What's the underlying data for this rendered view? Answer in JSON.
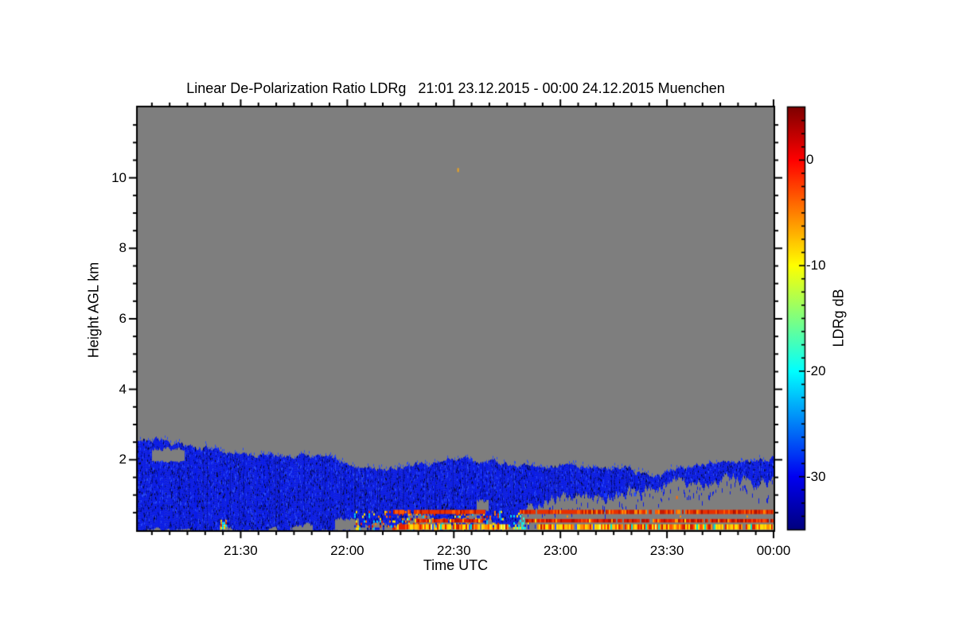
{
  "chart_data": {
    "type": "heatmap",
    "title": "Linear De-Polarization Ratio LDRg   21:01 23.12.2015 - 00:00 24.12.2015 Muenchen",
    "xlabel": "Time UTC",
    "ylabel": "Height AGL km",
    "colorbar_label": "LDRg dB",
    "x_start": "21:01",
    "x_end": "00:00",
    "x_ticks": [
      "21:30",
      "22:00",
      "22:30",
      "23:00",
      "23:30",
      "00:00"
    ],
    "x_minor_tick_minutes": 5,
    "y_range_km": [
      0,
      12
    ],
    "y_ticks": [
      2,
      4,
      6,
      8,
      10
    ],
    "y_minor_tick_km": 0.5,
    "color_scale": {
      "min_db": -35,
      "max_db": 5,
      "ticks_db": [
        0,
        -10,
        -20,
        -30
      ],
      "minor_tick_db": 1.25
    },
    "colormap_stops": [
      [
        0.0,
        "#00007f"
      ],
      [
        0.125,
        "#0000f1"
      ],
      [
        0.375,
        "#00ffff"
      ],
      [
        0.625,
        "#ffff00"
      ],
      [
        0.875,
        "#ff0000"
      ],
      [
        1.0,
        "#7f0000"
      ]
    ],
    "colors": {
      "no_data_gray": "#7e7e7e",
      "cloud_blue": "#0a1ce8",
      "cloud_navy": "#000d96",
      "cloud_deep": "#02053c",
      "cloud_bright": "#2347ff",
      "axis": "#000000"
    },
    "cloud_top_profile": [
      [
        1,
        2.52
      ],
      [
        6,
        2.55
      ],
      [
        10,
        2.48
      ],
      [
        14,
        2.38
      ],
      [
        18,
        2.32
      ],
      [
        24,
        2.25
      ],
      [
        28,
        2.17
      ],
      [
        32,
        2.15
      ],
      [
        36,
        2.22
      ],
      [
        40,
        2.1
      ],
      [
        44,
        2.06
      ],
      [
        48,
        2.1
      ],
      [
        52,
        2.08
      ],
      [
        56,
        2.02
      ],
      [
        59,
        1.95
      ],
      [
        61,
        1.8
      ],
      [
        66,
        1.75
      ],
      [
        71,
        1.73
      ],
      [
        76,
        1.8
      ],
      [
        81,
        1.88
      ],
      [
        86,
        1.97
      ],
      [
        89,
        2.07
      ],
      [
        91,
        2.1
      ],
      [
        94,
        2.0
      ],
      [
        98,
        1.95
      ],
      [
        101,
        2.0
      ],
      [
        104,
        1.88
      ],
      [
        108,
        1.82
      ],
      [
        112,
        1.85
      ],
      [
        116,
        1.8
      ],
      [
        120,
        1.86
      ],
      [
        124,
        1.9
      ],
      [
        128,
        1.78
      ],
      [
        132,
        1.72
      ],
      [
        136,
        1.7
      ],
      [
        139,
        1.78
      ],
      [
        143,
        1.62
      ],
      [
        147,
        1.58
      ],
      [
        151,
        1.72
      ],
      [
        155,
        1.8
      ],
      [
        159,
        1.82
      ],
      [
        163,
        1.85
      ],
      [
        168,
        1.88
      ],
      [
        173,
        1.9
      ],
      [
        177,
        1.93
      ],
      [
        180,
        2.08
      ]
    ],
    "cloud_base_profile": [
      [
        1,
        0
      ],
      [
        60,
        0
      ],
      [
        64,
        0.05
      ],
      [
        68,
        0.1
      ],
      [
        72,
        0.05
      ],
      [
        76,
        0.15
      ],
      [
        80,
        0.25
      ],
      [
        84,
        0.3
      ],
      [
        88,
        0.2
      ],
      [
        92,
        0.3
      ],
      [
        96,
        0.45
      ],
      [
        100,
        0.3
      ],
      [
        104,
        0.05
      ],
      [
        107,
        0.1
      ],
      [
        110,
        0.5
      ],
      [
        113,
        0.75
      ],
      [
        117,
        0.85
      ],
      [
        121,
        0.8
      ],
      [
        125,
        0.95
      ],
      [
        129,
        1.0
      ],
      [
        133,
        0.95
      ],
      [
        137,
        1.05
      ],
      [
        141,
        1.0
      ],
      [
        145,
        1.15
      ],
      [
        149,
        1.3
      ],
      [
        153,
        1.35
      ],
      [
        157,
        1.3
      ],
      [
        161,
        1.35
      ],
      [
        165,
        1.4
      ],
      [
        169,
        1.45
      ],
      [
        173,
        1.45
      ],
      [
        177,
        1.4
      ],
      [
        180,
        1.35
      ]
    ],
    "holes": [
      {
        "t0": 5,
        "t1": 14,
        "y0": 1.95,
        "y1": 2.3
      },
      {
        "t0": 24,
        "t1": 27,
        "y0": 0,
        "y1": 0.1
      },
      {
        "t0": 44,
        "t1": 50,
        "y0": 0,
        "y1": 0.1
      },
      {
        "t0": 56.5,
        "t1": 63,
        "y0": 0,
        "y1": 0.32
      },
      {
        "t0": 63,
        "t1": 71,
        "y0": 0,
        "y1": 0.15
      },
      {
        "t0": 77,
        "t1": 83,
        "y0": 0,
        "y1": 0.42
      },
      {
        "t0": 85,
        "t1": 89,
        "y0": 0,
        "y1": 0.28
      },
      {
        "t0": 90,
        "t1": 95,
        "y0": 0,
        "y1": 0.18
      },
      {
        "t0": 96.5,
        "t1": 99.5,
        "y0": 0.55,
        "y1": 0.85
      }
    ],
    "speckle_regions": [
      {
        "t0": 62,
        "t1": 104,
        "y0": 0.04,
        "y1": 0.55,
        "density": 0.45,
        "palette": [
          [
            "#0a1ce8",
            34
          ],
          [
            "#00c8ff",
            12
          ],
          [
            "#ffe100",
            14
          ],
          [
            "#ff7700",
            12
          ],
          [
            "#e32000",
            12
          ],
          [
            "#000d96",
            10
          ],
          [
            "#7e7e7e",
            6
          ]
        ]
      },
      {
        "t0": 105.5,
        "t1": 111,
        "y0": 0.05,
        "y1": 0.5,
        "density": 0.35,
        "palette": [
          [
            "#00e0ff",
            40
          ],
          [
            "#35f5c8",
            20
          ],
          [
            "#0a1ce8",
            25
          ],
          [
            "#ffe100",
            15
          ]
        ]
      },
      {
        "t0": 24.3,
        "t1": 26.2,
        "y0": 0.03,
        "y1": 0.3,
        "density": 0.8,
        "palette": [
          [
            "#00e0ff",
            30
          ],
          [
            "#ffe100",
            40
          ],
          [
            "#ff8800",
            20
          ],
          [
            "#e32000",
            10
          ]
        ]
      }
    ],
    "stripes": [
      {
        "name": "artifact-line-upper",
        "y0_km": 0.46,
        "y1_km": 0.58,
        "segments": [
          [
            72,
            98.8
          ],
          [
            108.5,
            180
          ]
        ],
        "gap_prob": 0.04,
        "dash_until": 77,
        "dash_gap": 0.5,
        "palette": [
          [
            "#e63000",
            50
          ],
          [
            "#ff5a00",
            18
          ],
          [
            "#c61a00",
            18
          ],
          [
            "#ff8c00",
            8
          ],
          [
            "#a81000",
            6
          ]
        ]
      },
      {
        "name": "artifact-line-middle",
        "y0_km": 0.22,
        "y1_km": 0.32,
        "segments": [
          [
            79,
            98.3
          ],
          [
            110,
            180
          ]
        ],
        "gap_prob": 0.05,
        "palette": [
          [
            "#dd1800",
            40
          ],
          [
            "#b01000",
            20
          ],
          [
            "#ff4800",
            16
          ],
          [
            "#e63000",
            14
          ],
          [
            "#ff9900",
            5
          ],
          [
            "#ffd700",
            5
          ]
        ]
      },
      {
        "name": "artifact-band-lower",
        "y0_km": 0.02,
        "y1_km": 0.17,
        "segments": [
          [
            74,
            105.5
          ],
          [
            113.5,
            180
          ]
        ],
        "gap_prob": 0.06,
        "palette": [
          [
            "#ffdf00",
            26
          ],
          [
            "#ffc000",
            16
          ],
          [
            "#ff9000",
            14
          ],
          [
            "#ff5500",
            12
          ],
          [
            "#e32000",
            14
          ],
          [
            "#c01800",
            8
          ],
          [
            "#eeff66",
            4
          ],
          [
            "#00e5cf",
            3
          ],
          [
            "#3355ff",
            3
          ]
        ]
      },
      {
        "name": "sparse-dots-row",
        "y0_km": 0.36,
        "y1_km": 0.42,
        "segments": [
          [
            111,
            180
          ]
        ],
        "gap_prob": 0.975,
        "palette": [
          [
            "#ff8c00",
            70
          ],
          [
            "#ffd700",
            30
          ]
        ]
      }
    ],
    "spot_features": [
      {
        "t": 91.2,
        "km": 10.22,
        "w": 2,
        "h": 5,
        "color": "#efa41f"
      },
      {
        "t": 132.7,
        "km": 1.0,
        "w": 4,
        "h": 5,
        "color": "#1a3cff"
      },
      {
        "t": 134.0,
        "km": 0.95,
        "w": 2,
        "h": 8,
        "color": "#0a1ce8"
      },
      {
        "t": 136.5,
        "km": 1.05,
        "w": 2,
        "h": 4,
        "color": "#2b50ff"
      },
      {
        "t": 141.0,
        "km": 1.02,
        "w": 3,
        "h": 5,
        "color": "#2b50ff"
      },
      {
        "t": 142.8,
        "km": 0.92,
        "w": 2,
        "h": 7,
        "color": "#0a1ce8"
      },
      {
        "t": 152.8,
        "km": 0.93,
        "w": 2,
        "h": 4,
        "color": "#ff6a00"
      }
    ]
  }
}
